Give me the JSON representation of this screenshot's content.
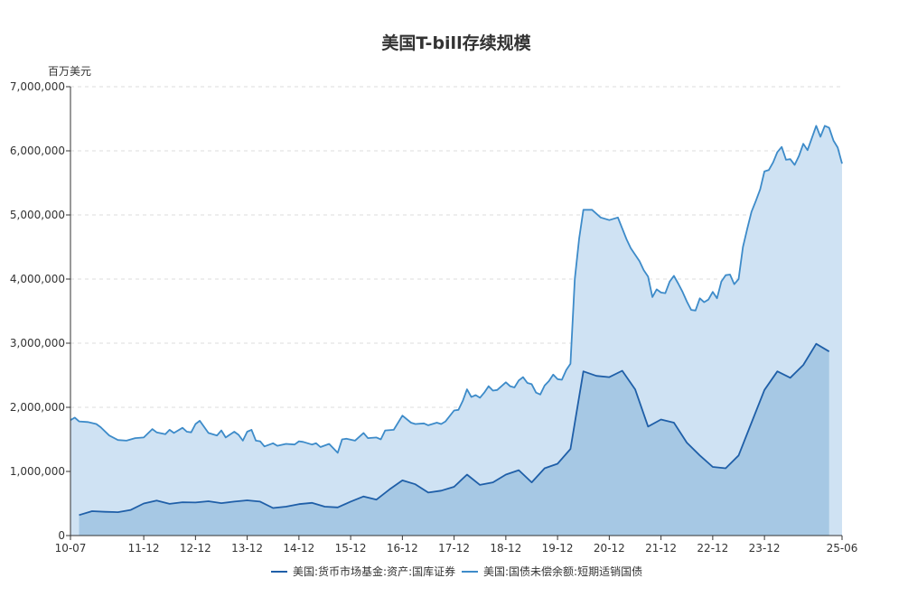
{
  "chart_data": {
    "type": "area",
    "title": "美国T-bill存续规模",
    "y_unit": "百万美元",
    "ylim": [
      0,
      7000000
    ],
    "y_ticks": [
      "0",
      "1,000,000",
      "2,000,000",
      "3,000,000",
      "4,000,000",
      "5,000,000",
      "6,000,000",
      "7,000,000"
    ],
    "x_ticks": [
      "10-07",
      "11-12",
      "12-12",
      "13-12",
      "14-12",
      "15-12",
      "16-12",
      "17-12",
      "18-12",
      "19-12",
      "20-12",
      "21-12",
      "22-12",
      "23-12",
      "25-06"
    ],
    "x_range": [
      "2010-07",
      "2025-06"
    ],
    "grid": "horizontal dashed",
    "legend_position": "bottom",
    "series": [
      {
        "name": "美国:货币市场基金:资产:国库证券",
        "color": "#1f5fa8",
        "fill": "#a6c8e4",
        "points": [
          [
            "2010-09",
            320000
          ],
          [
            "2010-12",
            380000
          ],
          [
            "2011-03",
            370000
          ],
          [
            "2011-06",
            365000
          ],
          [
            "2011-09",
            400000
          ],
          [
            "2011-12",
            500000
          ],
          [
            "2012-03",
            545000
          ],
          [
            "2012-06",
            495000
          ],
          [
            "2012-09",
            520000
          ],
          [
            "2012-12",
            515000
          ],
          [
            "2013-03",
            535000
          ],
          [
            "2013-06",
            505000
          ],
          [
            "2013-09",
            530000
          ],
          [
            "2013-12",
            550000
          ],
          [
            "2014-03",
            530000
          ],
          [
            "2014-06",
            430000
          ],
          [
            "2014-09",
            450000
          ],
          [
            "2014-12",
            490000
          ],
          [
            "2015-03",
            510000
          ],
          [
            "2015-06",
            450000
          ],
          [
            "2015-09",
            440000
          ],
          [
            "2015-12",
            530000
          ],
          [
            "2016-03",
            610000
          ],
          [
            "2016-06",
            560000
          ],
          [
            "2016-09",
            720000
          ],
          [
            "2016-12",
            860000
          ],
          [
            "2017-03",
            800000
          ],
          [
            "2017-06",
            670000
          ],
          [
            "2017-09",
            700000
          ],
          [
            "2017-12",
            760000
          ],
          [
            "2018-03",
            950000
          ],
          [
            "2018-06",
            790000
          ],
          [
            "2018-09",
            830000
          ],
          [
            "2018-12",
            950000
          ],
          [
            "2019-03",
            1020000
          ],
          [
            "2019-06",
            830000
          ],
          [
            "2019-09",
            1050000
          ],
          [
            "2019-12",
            1120000
          ],
          [
            "2020-03",
            1350000
          ],
          [
            "2020-06",
            2560000
          ],
          [
            "2020-09",
            2490000
          ],
          [
            "2020-12",
            2470000
          ],
          [
            "2021-03",
            2570000
          ],
          [
            "2021-06",
            2280000
          ],
          [
            "2021-09",
            1700000
          ],
          [
            "2021-12",
            1810000
          ],
          [
            "2022-03",
            1760000
          ],
          [
            "2022-06",
            1450000
          ],
          [
            "2022-09",
            1250000
          ],
          [
            "2022-12",
            1070000
          ],
          [
            "2023-03",
            1050000
          ],
          [
            "2023-06",
            1250000
          ],
          [
            "2023-09",
            1760000
          ],
          [
            "2023-12",
            2270000
          ],
          [
            "2024-03",
            2560000
          ],
          [
            "2024-06",
            2460000
          ],
          [
            "2024-09",
            2660000
          ],
          [
            "2024-12",
            2990000
          ],
          [
            "2025-03",
            2870000
          ]
        ]
      },
      {
        "name": "美国:国债未偿余额:短期适销国债",
        "color": "#3d8bc9",
        "fill": "#cfe2f3",
        "points": [
          [
            "2010-07",
            1800000
          ],
          [
            "2010-08",
            1840000
          ],
          [
            "2010-09",
            1780000
          ],
          [
            "2010-11",
            1770000
          ],
          [
            "2011-01",
            1740000
          ],
          [
            "2011-02",
            1690000
          ],
          [
            "2011-04",
            1560000
          ],
          [
            "2011-06",
            1490000
          ],
          [
            "2011-08",
            1480000
          ],
          [
            "2011-10",
            1520000
          ],
          [
            "2011-12",
            1530000
          ],
          [
            "2012-02",
            1660000
          ],
          [
            "2012-03",
            1610000
          ],
          [
            "2012-05",
            1580000
          ],
          [
            "2012-06",
            1650000
          ],
          [
            "2012-07",
            1600000
          ],
          [
            "2012-09",
            1680000
          ],
          [
            "2012-10",
            1620000
          ],
          [
            "2012-11",
            1610000
          ],
          [
            "2012-12",
            1740000
          ],
          [
            "2013-01",
            1790000
          ],
          [
            "2013-03",
            1600000
          ],
          [
            "2013-05",
            1560000
          ],
          [
            "2013-06",
            1640000
          ],
          [
            "2013-07",
            1530000
          ],
          [
            "2013-09",
            1620000
          ],
          [
            "2013-10",
            1570000
          ],
          [
            "2013-11",
            1480000
          ],
          [
            "2013-12",
            1620000
          ],
          [
            "2014-01",
            1650000
          ],
          [
            "2014-02",
            1480000
          ],
          [
            "2014-03",
            1470000
          ],
          [
            "2014-04",
            1390000
          ],
          [
            "2014-06",
            1440000
          ],
          [
            "2014-07",
            1400000
          ],
          [
            "2014-09",
            1430000
          ],
          [
            "2014-11",
            1420000
          ],
          [
            "2014-12",
            1470000
          ],
          [
            "2015-01",
            1460000
          ],
          [
            "2015-03",
            1420000
          ],
          [
            "2015-04",
            1440000
          ],
          [
            "2015-05",
            1380000
          ],
          [
            "2015-07",
            1430000
          ],
          [
            "2015-09",
            1290000
          ],
          [
            "2015-10",
            1500000
          ],
          [
            "2015-11",
            1510000
          ],
          [
            "2016-01",
            1480000
          ],
          [
            "2016-03",
            1600000
          ],
          [
            "2016-04",
            1520000
          ],
          [
            "2016-06",
            1530000
          ],
          [
            "2016-07",
            1500000
          ],
          [
            "2016-08",
            1640000
          ],
          [
            "2016-10",
            1650000
          ],
          [
            "2016-12",
            1870000
          ],
          [
            "2017-02",
            1760000
          ],
          [
            "2017-03",
            1740000
          ],
          [
            "2017-05",
            1750000
          ],
          [
            "2017-06",
            1720000
          ],
          [
            "2017-08",
            1760000
          ],
          [
            "2017-09",
            1740000
          ],
          [
            "2017-10",
            1780000
          ],
          [
            "2017-12",
            1950000
          ],
          [
            "2018-01",
            1960000
          ],
          [
            "2018-02",
            2100000
          ],
          [
            "2018-03",
            2280000
          ],
          [
            "2018-04",
            2160000
          ],
          [
            "2018-05",
            2190000
          ],
          [
            "2018-06",
            2150000
          ],
          [
            "2018-07",
            2230000
          ],
          [
            "2018-08",
            2330000
          ],
          [
            "2018-09",
            2260000
          ],
          [
            "2018-10",
            2270000
          ],
          [
            "2018-12",
            2390000
          ],
          [
            "2019-01",
            2330000
          ],
          [
            "2019-02",
            2310000
          ],
          [
            "2019-03",
            2420000
          ],
          [
            "2019-04",
            2470000
          ],
          [
            "2019-05",
            2380000
          ],
          [
            "2019-06",
            2360000
          ],
          [
            "2019-07",
            2230000
          ],
          [
            "2019-08",
            2200000
          ],
          [
            "2019-09",
            2340000
          ],
          [
            "2019-10",
            2410000
          ],
          [
            "2019-11",
            2510000
          ],
          [
            "2019-12",
            2440000
          ],
          [
            "2020-01",
            2430000
          ],
          [
            "2020-02",
            2580000
          ],
          [
            "2020-03",
            2680000
          ],
          [
            "2020-04",
            4000000
          ],
          [
            "2020-05",
            4630000
          ],
          [
            "2020-06",
            5080000
          ],
          [
            "2020-08",
            5080000
          ],
          [
            "2020-10",
            4960000
          ],
          [
            "2020-12",
            4920000
          ],
          [
            "2021-02",
            4960000
          ],
          [
            "2021-03",
            4790000
          ],
          [
            "2021-04",
            4620000
          ],
          [
            "2021-05",
            4480000
          ],
          [
            "2021-07",
            4280000
          ],
          [
            "2021-08",
            4140000
          ],
          [
            "2021-09",
            4040000
          ],
          [
            "2021-10",
            3720000
          ],
          [
            "2021-11",
            3840000
          ],
          [
            "2021-12",
            3790000
          ],
          [
            "2022-01",
            3780000
          ],
          [
            "2022-02",
            3960000
          ],
          [
            "2022-03",
            4050000
          ],
          [
            "2022-04",
            3930000
          ],
          [
            "2022-05",
            3800000
          ],
          [
            "2022-06",
            3650000
          ],
          [
            "2022-07",
            3520000
          ],
          [
            "2022-08",
            3510000
          ],
          [
            "2022-09",
            3700000
          ],
          [
            "2022-10",
            3640000
          ],
          [
            "2022-11",
            3680000
          ],
          [
            "2022-12",
            3800000
          ],
          [
            "2023-01",
            3700000
          ],
          [
            "2023-02",
            3960000
          ],
          [
            "2023-03",
            4060000
          ],
          [
            "2023-04",
            4070000
          ],
          [
            "2023-05",
            3920000
          ],
          [
            "2023-06",
            4000000
          ],
          [
            "2023-07",
            4500000
          ],
          [
            "2023-08",
            4780000
          ],
          [
            "2023-09",
            5050000
          ],
          [
            "2023-10",
            5220000
          ],
          [
            "2023-11",
            5400000
          ],
          [
            "2023-12",
            5680000
          ],
          [
            "2024-01",
            5700000
          ],
          [
            "2024-02",
            5820000
          ],
          [
            "2024-03",
            5980000
          ],
          [
            "2024-04",
            6060000
          ],
          [
            "2024-05",
            5860000
          ],
          [
            "2024-06",
            5870000
          ],
          [
            "2024-07",
            5780000
          ],
          [
            "2024-08",
            5920000
          ],
          [
            "2024-09",
            6110000
          ],
          [
            "2024-10",
            6010000
          ],
          [
            "2024-11",
            6200000
          ],
          [
            "2024-12",
            6390000
          ],
          [
            "2025-01",
            6220000
          ],
          [
            "2025-02",
            6390000
          ],
          [
            "2025-03",
            6360000
          ],
          [
            "2025-04",
            6160000
          ],
          [
            "2025-05",
            6050000
          ],
          [
            "2025-06",
            5800000
          ]
        ]
      }
    ]
  }
}
